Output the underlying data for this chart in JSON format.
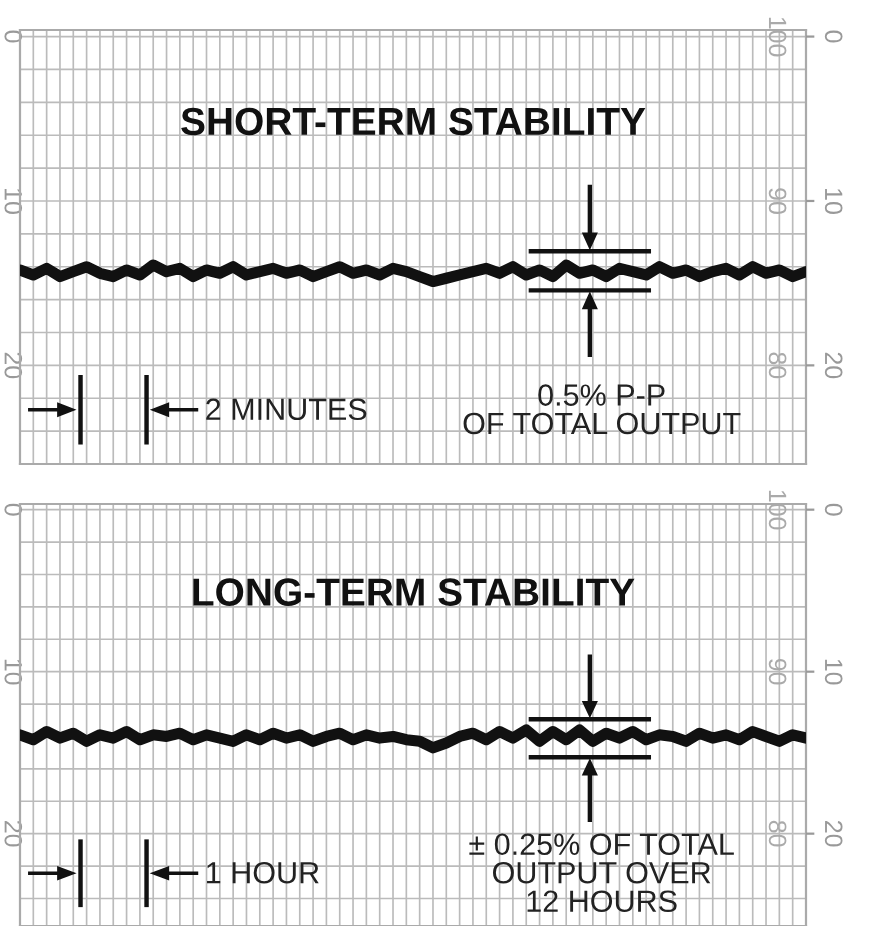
{
  "chart_data": [
    {
      "type": "line",
      "title": "SHORT-TERM STABILITY",
      "categories": [
        null,
        null,
        null,
        null,
        null,
        null,
        null,
        null,
        null,
        null,
        null,
        null,
        null,
        null,
        null,
        null,
        null,
        null,
        null,
        null,
        null,
        null,
        null,
        null,
        null,
        null,
        null,
        null,
        null,
        null,
        null,
        null,
        null,
        null,
        null,
        null,
        null,
        null,
        null,
        null,
        null,
        null,
        null,
        null,
        null,
        null,
        null,
        null,
        null,
        null,
        null,
        null,
        null,
        null,
        null,
        null,
        null,
        null,
        null,
        null
      ],
      "series": [
        {
          "color": "#111111",
          "values": [
            14.2,
            14.5,
            14.1,
            14.6,
            14.3,
            14.0,
            14.4,
            14.6,
            14.2,
            14.5,
            13.9,
            14.3,
            14.1,
            14.6,
            14.2,
            14.4,
            14.0,
            14.5,
            14.3,
            14.1,
            14.4,
            14.2,
            14.6,
            14.3,
            14.0,
            14.4,
            14.2,
            14.5,
            14.1,
            14.3,
            14.6,
            14.9,
            14.7,
            14.5,
            14.3,
            14.1,
            14.4,
            14.0,
            14.5,
            14.2,
            14.6,
            13.9,
            14.4,
            14.2,
            14.6,
            14.1,
            14.3,
            14.5,
            14.0,
            14.4,
            14.2,
            14.6,
            14.3,
            14.1,
            14.5,
            14.0,
            14.4,
            14.2,
            14.6,
            14.3
          ]
        }
      ],
      "ylim": [
        26,
        -0.4
      ],
      "yticks": [
        0,
        10,
        20
      ],
      "y2lim": [
        26,
        -0.4
      ],
      "y2ticks": [
        0,
        10,
        20
      ],
      "y3lim": [
        74,
        100.4
      ],
      "y3ticks": [
        100,
        90,
        80
      ],
      "grid": true,
      "annotations": [
        "2 MINUTES",
        "0.5% P-P\nOF TOTAL OUTPUT"
      ]
    },
    {
      "type": "line",
      "title": "LONG-TERM STABILITY",
      "categories": [
        null,
        null,
        null,
        null,
        null,
        null,
        null,
        null,
        null,
        null,
        null,
        null,
        null,
        null,
        null,
        null,
        null,
        null,
        null,
        null,
        null,
        null,
        null,
        null,
        null,
        null,
        null,
        null,
        null,
        null,
        null,
        null,
        null,
        null,
        null,
        null,
        null,
        null,
        null,
        null,
        null,
        null,
        null,
        null,
        null,
        null,
        null,
        null,
        null,
        null,
        null,
        null,
        null,
        null,
        null,
        null,
        null,
        null,
        null,
        null
      ],
      "series": [
        {
          "color": "#111111",
          "values": [
            13.9,
            14.2,
            13.7,
            14.1,
            13.8,
            14.3,
            13.9,
            14.1,
            13.7,
            14.2,
            13.9,
            14.0,
            13.8,
            14.2,
            13.9,
            14.1,
            14.3,
            13.9,
            14.2,
            13.8,
            14.1,
            13.9,
            14.3,
            14.0,
            13.8,
            14.2,
            13.9,
            14.1,
            14.0,
            14.2,
            14.3,
            14.7,
            14.4,
            14.0,
            13.8,
            14.2,
            13.7,
            14.1,
            13.6,
            14.3,
            13.7,
            14.2,
            13.6,
            14.3,
            13.8,
            14.1,
            13.7,
            14.2,
            13.9,
            14.0,
            14.3,
            13.8,
            14.1,
            13.9,
            14.2,
            13.7,
            14.0,
            14.3,
            13.9,
            14.1
          ]
        }
      ],
      "ylim": [
        25.7,
        -0.35
      ],
      "yticks": [
        0,
        10,
        20
      ],
      "y2lim": [
        25.7,
        -0.35
      ],
      "y2ticks": [
        0,
        10,
        20
      ],
      "y3lim": [
        74.3,
        100.35
      ],
      "y3ticks": [
        100,
        90,
        80
      ],
      "grid": true,
      "annotations": [
        "1 HOUR",
        "± 0.25% OF TOTAL\nOUTPUT OVER\n12 HOURS"
      ]
    }
  ]
}
